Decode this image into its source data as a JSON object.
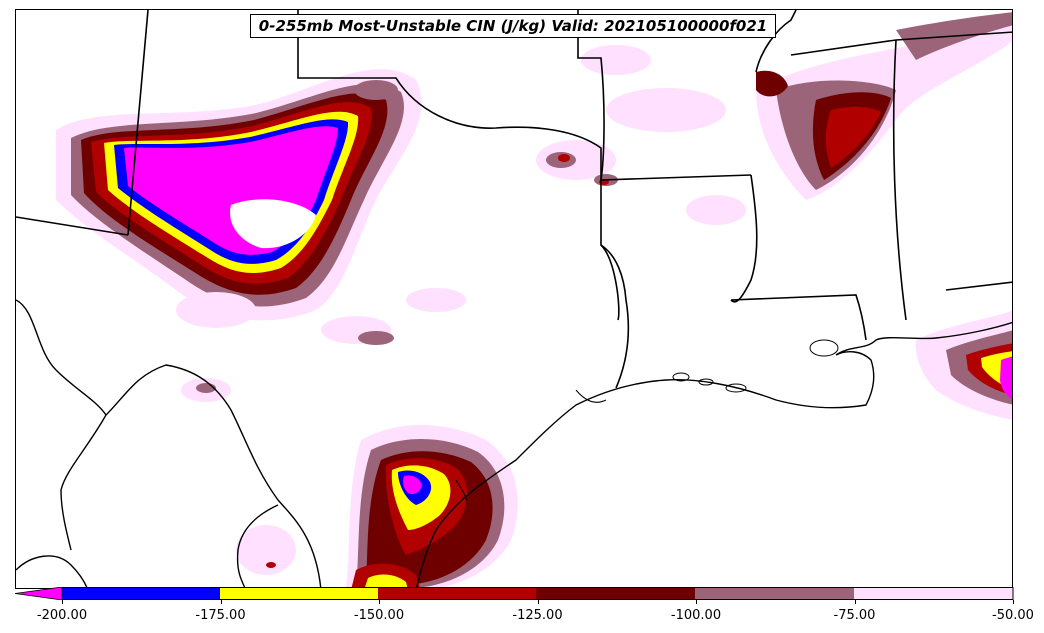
{
  "title": "0-255mb Most-Unstable CIN (J/kg) Valid: 202105100000f021",
  "colors": {
    "lt_-200": "#ff00ff",
    "-200_-175": "#0000ff",
    "-175_-150": "#ffff00",
    "-150_-125": "#b00000",
    "-125_-100": "#6e0000",
    "-100_-75": "#9b6478",
    "-75_-50": "#ffe1ff"
  },
  "colorbar": {
    "ticks": [
      "-200.00",
      "-175.00",
      "-150.00",
      "-125.00",
      "-100.00",
      "-75.00",
      "-50.00"
    ],
    "segments": [
      {
        "name": "lt-neg200",
        "color": "#ff00ff"
      },
      {
        "name": "neg200-neg175",
        "color": "#0000ff"
      },
      {
        "name": "neg175-neg150",
        "color": "#ffff00"
      },
      {
        "name": "neg150-neg125",
        "color": "#b00000"
      },
      {
        "name": "neg125-neg100",
        "color": "#6e0000"
      },
      {
        "name": "neg100-neg75",
        "color": "#9b6478"
      },
      {
        "name": "neg75-neg50",
        "color": "#ffe1ff"
      }
    ]
  }
}
